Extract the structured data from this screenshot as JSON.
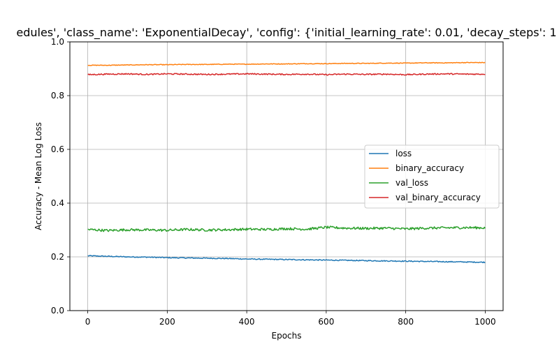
{
  "chart_data": {
    "type": "line",
    "title": "edules', 'class_name': 'ExponentialDecay', 'config': {'initial_learning_rate': 0.01, 'decay_steps': 1",
    "xlabel": "Epochs",
    "ylabel": "Accuracy - Mean Log Loss",
    "xlim": [
      -45,
      1045
    ],
    "ylim": [
      0.0,
      1.0
    ],
    "xticks": [
      0,
      200,
      400,
      600,
      800,
      1000
    ],
    "yticks": [
      0.0,
      0.2,
      0.4,
      0.6,
      0.8,
      1.0
    ],
    "xtick_labels": [
      "0",
      "200",
      "400",
      "600",
      "800",
      "1000"
    ],
    "ytick_labels": [
      "0.0",
      "0.2",
      "0.4",
      "0.6",
      "0.8",
      "1.0"
    ],
    "grid": true,
    "legend_position": "center-right",
    "series": [
      {
        "name": "loss",
        "color": "#1f77b4",
        "x": [
          0,
          50,
          100,
          150,
          200,
          250,
          300,
          350,
          400,
          450,
          500,
          550,
          600,
          650,
          700,
          750,
          800,
          850,
          900,
          950,
          1000
        ],
        "values": [
          0.204,
          0.202,
          0.2,
          0.199,
          0.197,
          0.196,
          0.195,
          0.194,
          0.192,
          0.191,
          0.19,
          0.189,
          0.188,
          0.187,
          0.186,
          0.185,
          0.184,
          0.183,
          0.182,
          0.181,
          0.18
        ]
      },
      {
        "name": "binary_accuracy",
        "color": "#ff7f0e",
        "x": [
          0,
          50,
          100,
          150,
          200,
          250,
          300,
          350,
          400,
          450,
          500,
          550,
          600,
          650,
          700,
          750,
          800,
          850,
          900,
          950,
          1000
        ],
        "values": [
          0.913,
          0.913,
          0.914,
          0.915,
          0.915,
          0.916,
          0.916,
          0.917,
          0.917,
          0.918,
          0.918,
          0.919,
          0.919,
          0.92,
          0.92,
          0.921,
          0.921,
          0.922,
          0.922,
          0.923,
          0.923
        ]
      },
      {
        "name": "val_loss",
        "color": "#2ca02c",
        "x": [
          0,
          50,
          100,
          150,
          200,
          250,
          300,
          350,
          400,
          450,
          500,
          550,
          600,
          650,
          700,
          750,
          800,
          850,
          900,
          950,
          1000
        ],
        "values": [
          0.302,
          0.298,
          0.301,
          0.3,
          0.299,
          0.302,
          0.3,
          0.301,
          0.303,
          0.302,
          0.305,
          0.303,
          0.31,
          0.307,
          0.306,
          0.307,
          0.304,
          0.307,
          0.308,
          0.309,
          0.308
        ]
      },
      {
        "name": "val_binary_accuracy",
        "color": "#d62728",
        "x": [
          0,
          50,
          100,
          150,
          200,
          250,
          300,
          350,
          400,
          450,
          500,
          550,
          600,
          650,
          700,
          750,
          800,
          850,
          900,
          950,
          1000
        ],
        "values": [
          0.878,
          0.88,
          0.881,
          0.879,
          0.881,
          0.88,
          0.879,
          0.88,
          0.881,
          0.88,
          0.879,
          0.88,
          0.878,
          0.88,
          0.879,
          0.88,
          0.878,
          0.88,
          0.881,
          0.88,
          0.88
        ]
      }
    ]
  }
}
